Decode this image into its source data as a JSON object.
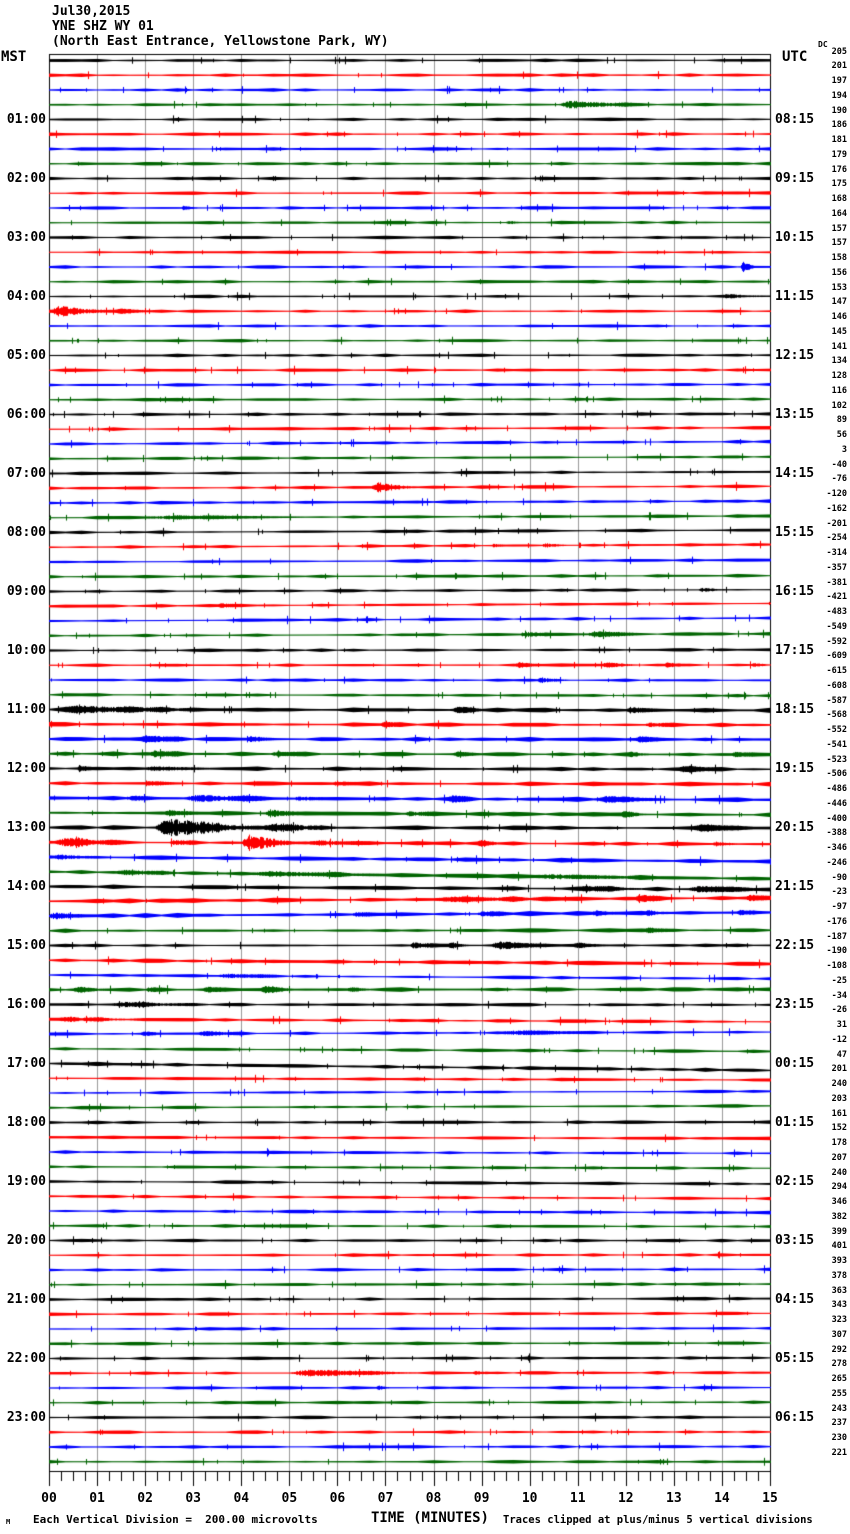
{
  "header": {
    "date_line": "Jul30,2015",
    "station_line": "YNE SHZ WY 01",
    "location_line": "(North East Entrance, Yellowstone Park, WY)"
  },
  "left_axis": {
    "label": "MST"
  },
  "right_axis": {
    "label": "UTC",
    "dc_header": "DC"
  },
  "x_axis": {
    "title": "TIME (MINUTES)",
    "tick_labels": [
      "00",
      "01",
      "02",
      "03",
      "04",
      "05",
      "06",
      "07",
      "08",
      "09",
      "10",
      "11",
      "12",
      "13",
      "14",
      "15"
    ]
  },
  "footer": {
    "left_note": "Each Vertical Division =  200.00 microvolts",
    "right_note": "Traces clipped at plus/minus 5 vertical divisions",
    "corner_mark": "M"
  },
  "colors": {
    "trace_cycle": [
      "#000000",
      "#ff0000",
      "#0000ff",
      "#006400"
    ],
    "grid": "#999999",
    "border": "#000000",
    "text": "#000000"
  },
  "chart_data": {
    "type": "line",
    "subtype": "seismogram-helicorder",
    "x_range_minutes": [
      0,
      15
    ],
    "minutes_per_line": 15,
    "lines_per_hour": 4,
    "rows_total": 96,
    "clip_note": "Traces clipped at plus/minus 5 vertical divisions",
    "division_microvolts": 200.0,
    "mst_hour_labels": [
      "01:00",
      "02:00",
      "03:00",
      "04:00",
      "05:00",
      "06:00",
      "07:00",
      "08:00",
      "09:00",
      "10:00",
      "11:00",
      "12:00",
      "13:00",
      "14:00",
      "15:00",
      "16:00",
      "17:00",
      "18:00",
      "19:00",
      "20:00",
      "21:00",
      "22:00",
      "23:00"
    ],
    "utc_hour_labels": [
      "08:15",
      "09:15",
      "10:15",
      "11:15",
      "12:15",
      "13:15",
      "14:15",
      "15:15",
      "16:15",
      "17:15",
      "18:15",
      "19:15",
      "20:15",
      "21:15",
      "22:15",
      "23:15",
      "00:15",
      "01:15",
      "02:15",
      "03:15",
      "04:15",
      "05:15",
      "06:15"
    ],
    "dc_offsets": [
      205,
      201,
      197,
      194,
      190,
      186,
      181,
      179,
      176,
      175,
      168,
      164,
      157,
      157,
      158,
      156,
      153,
      147,
      146,
      145,
      141,
      134,
      128,
      116,
      102,
      89,
      56,
      3,
      -40,
      -76,
      -120,
      -162,
      -201,
      -254,
      -314,
      -357,
      -381,
      -421,
      -483,
      -549,
      -592,
      -609,
      -615,
      -608,
      -587,
      -568,
      -552,
      -541,
      -523,
      -506,
      -486,
      -446,
      -400,
      -388,
      -346,
      -246,
      -90,
      -23,
      -97,
      -176,
      -187,
      -190,
      -108,
      -25,
      -34,
      -26,
      31,
      -12,
      47,
      201,
      240,
      203,
      161,
      152,
      178,
      207,
      240,
      294,
      346,
      382,
      399,
      401,
      393,
      378,
      363,
      343,
      323,
      307,
      292,
      278,
      265,
      255,
      243,
      237,
      230,
      221
    ],
    "events": {
      "3": [
        [
          10.6,
          12.4,
          3.2
        ]
      ],
      "10": [
        [
          2.75,
          3.1,
          1.8
        ]
      ],
      "11": [
        [
          9.5,
          9.85,
          1.6
        ]
      ],
      "14": [
        [
          14.38,
          14.68,
          5.5
        ]
      ],
      "16": [
        [
          14.0,
          15.0,
          1.5
        ]
      ],
      "17": [
        [
          0.05,
          1.35,
          4.2
        ],
        [
          1.35,
          2.3,
          1.4
        ]
      ],
      "29": [
        [
          6.7,
          7.7,
          4.2
        ]
      ],
      "31": [
        [
          2.0,
          5.5,
          1.1
        ]
      ],
      "33": [
        [
          9.2,
          9.5,
          1.1
        ],
        [
          10.25,
          10.8,
          1.8
        ]
      ],
      "36": [
        [
          13.5,
          14.15,
          1.7
        ]
      ],
      "37": [
        [
          3.5,
          4.1,
          1.2
        ]
      ],
      "39": [
        [
          9.8,
          10.5,
          2.2
        ],
        [
          11.2,
          12.35,
          2.3
        ]
      ],
      "41": [
        [
          9.7,
          10.25,
          1.8
        ],
        [
          11.5,
          12.3,
          1.9
        ],
        [
          12.8,
          13.25,
          1.6
        ],
        [
          14.6,
          15.0,
          1.5
        ]
      ],
      "42": [
        [
          10.15,
          10.85,
          2.2
        ]
      ],
      "44": [
        [
          0.3,
          3.4,
          2.6
        ],
        [
          8.4,
          9.1,
          1.9
        ],
        [
          12.0,
          12.7,
          2.1
        ]
      ],
      "45": [
        [
          6.9,
          7.4,
          1.8
        ],
        [
          12.4,
          13.1,
          1.7
        ]
      ],
      "46": [
        [
          1.9,
          3.0,
          2.0
        ],
        [
          4.1,
          4.75,
          1.8
        ],
        [
          12.2,
          12.85,
          1.7
        ]
      ],
      "47": [
        [
          2.1,
          2.85,
          2.2
        ],
        [
          4.6,
          5.3,
          1.9
        ],
        [
          8.4,
          8.95,
          1.5
        ],
        [
          12.0,
          12.55,
          1.7
        ],
        [
          14.2,
          14.75,
          1.5
        ]
      ],
      "48": [
        [
          0.58,
          0.9,
          2.8
        ],
        [
          2.0,
          3.5,
          1.5
        ],
        [
          13.1,
          14.0,
          1.7
        ]
      ],
      "49": [
        [
          2.0,
          2.65,
          1.5
        ],
        [
          5.9,
          6.45,
          1.4
        ]
      ],
      "50": [
        [
          1.6,
          2.25,
          1.9
        ],
        [
          2.8,
          4.75,
          2.7
        ],
        [
          5.1,
          5.75,
          1.7
        ],
        [
          8.3,
          8.95,
          1.5
        ],
        [
          11.4,
          12.9,
          1.7
        ]
      ],
      "51": [
        [
          2.4,
          3.15,
          1.9
        ],
        [
          4.5,
          5.25,
          3.0
        ],
        [
          7.4,
          8.15,
          1.5
        ],
        [
          11.9,
          12.45,
          1.7
        ]
      ],
      "52": [
        [
          2.2,
          4.45,
          8.5
        ],
        [
          4.45,
          6.1,
          3.2
        ],
        [
          13.4,
          14.75,
          1.7
        ]
      ],
      "53": [
        [
          0.1,
          1.75,
          3.4
        ],
        [
          2.5,
          3.15,
          2.1
        ],
        [
          4.0,
          5.25,
          7.5
        ],
        [
          5.4,
          6.7,
          2.4
        ],
        [
          8.9,
          9.45,
          1.4
        ],
        [
          13.8,
          14.35,
          1.6
        ]
      ],
      "54": [
        [
          0.1,
          1.05,
          1.7
        ]
      ],
      "55": [
        [
          1.4,
          2.75,
          2.1
        ],
        [
          4.2,
          7.1,
          1.7
        ],
        [
          10.1,
          13.0,
          1.4
        ]
      ],
      "56": [
        [
          11.0,
          12.55,
          1.4
        ],
        [
          13.3,
          14.95,
          2.1
        ]
      ],
      "57": [
        [
          8.0,
          11.05,
          1.2
        ],
        [
          12.2,
          12.85,
          3.2
        ],
        [
          14.5,
          15.0,
          2.1
        ]
      ],
      "58": [
        [
          0.0,
          0.75,
          3.0
        ],
        [
          6.3,
          6.85,
          1.5
        ],
        [
          8.9,
          9.65,
          1.7
        ],
        [
          11.3,
          11.85,
          1.7
        ],
        [
          12.4,
          12.95,
          1.7
        ],
        [
          14.3,
          14.85,
          1.5
        ]
      ],
      "59": [
        [
          12.4,
          12.95,
          1.4
        ]
      ],
      "60": [
        [
          7.5,
          8.15,
          2.6
        ],
        [
          8.3,
          8.75,
          1.9
        ],
        [
          9.2,
          10.55,
          2.7
        ],
        [
          10.9,
          11.65,
          1.5
        ]
      ],
      "62": [
        [
          3.5,
          5.0,
          1.6
        ]
      ],
      "63": [
        [
          0.5,
          1.25,
          1.7
        ],
        [
          2.0,
          2.55,
          1.5
        ],
        [
          3.2,
          3.75,
          1.6
        ],
        [
          4.4,
          5.15,
          2.3
        ],
        [
          6.2,
          6.75,
          1.4
        ]
      ],
      "64": [
        [
          1.3,
          3.5,
          1.6
        ]
      ],
      "65": [
        [
          0.2,
          2.2,
          1.4
        ]
      ],
      "66": [
        [
          1.9,
          2.45,
          1.4
        ],
        [
          3.1,
          4.25,
          1.6
        ],
        [
          9.4,
          11.5,
          1.3
        ]
      ],
      "89": [
        [
          5.0,
          7.75,
          3.0
        ],
        [
          8.8,
          9.25,
          1.3
        ]
      ],
      "90": [
        [
          6.8,
          7.1,
          1.7
        ]
      ]
    },
    "elevated_noise_rows": {
      "44": 0.5,
      "45": 0.35,
      "46": 0.4,
      "47": 0.4,
      "48": 0.3,
      "49": 0.35,
      "50": 0.5,
      "51": 0.4,
      "52": 0.4,
      "53": 0.3,
      "54": 0.4,
      "55": 0.4,
      "56": 0.4,
      "57": 0.5,
      "58": 0.5,
      "59": 0.3,
      "61": 0.3,
      "63": 0.4,
      "68": 0.3
    }
  }
}
